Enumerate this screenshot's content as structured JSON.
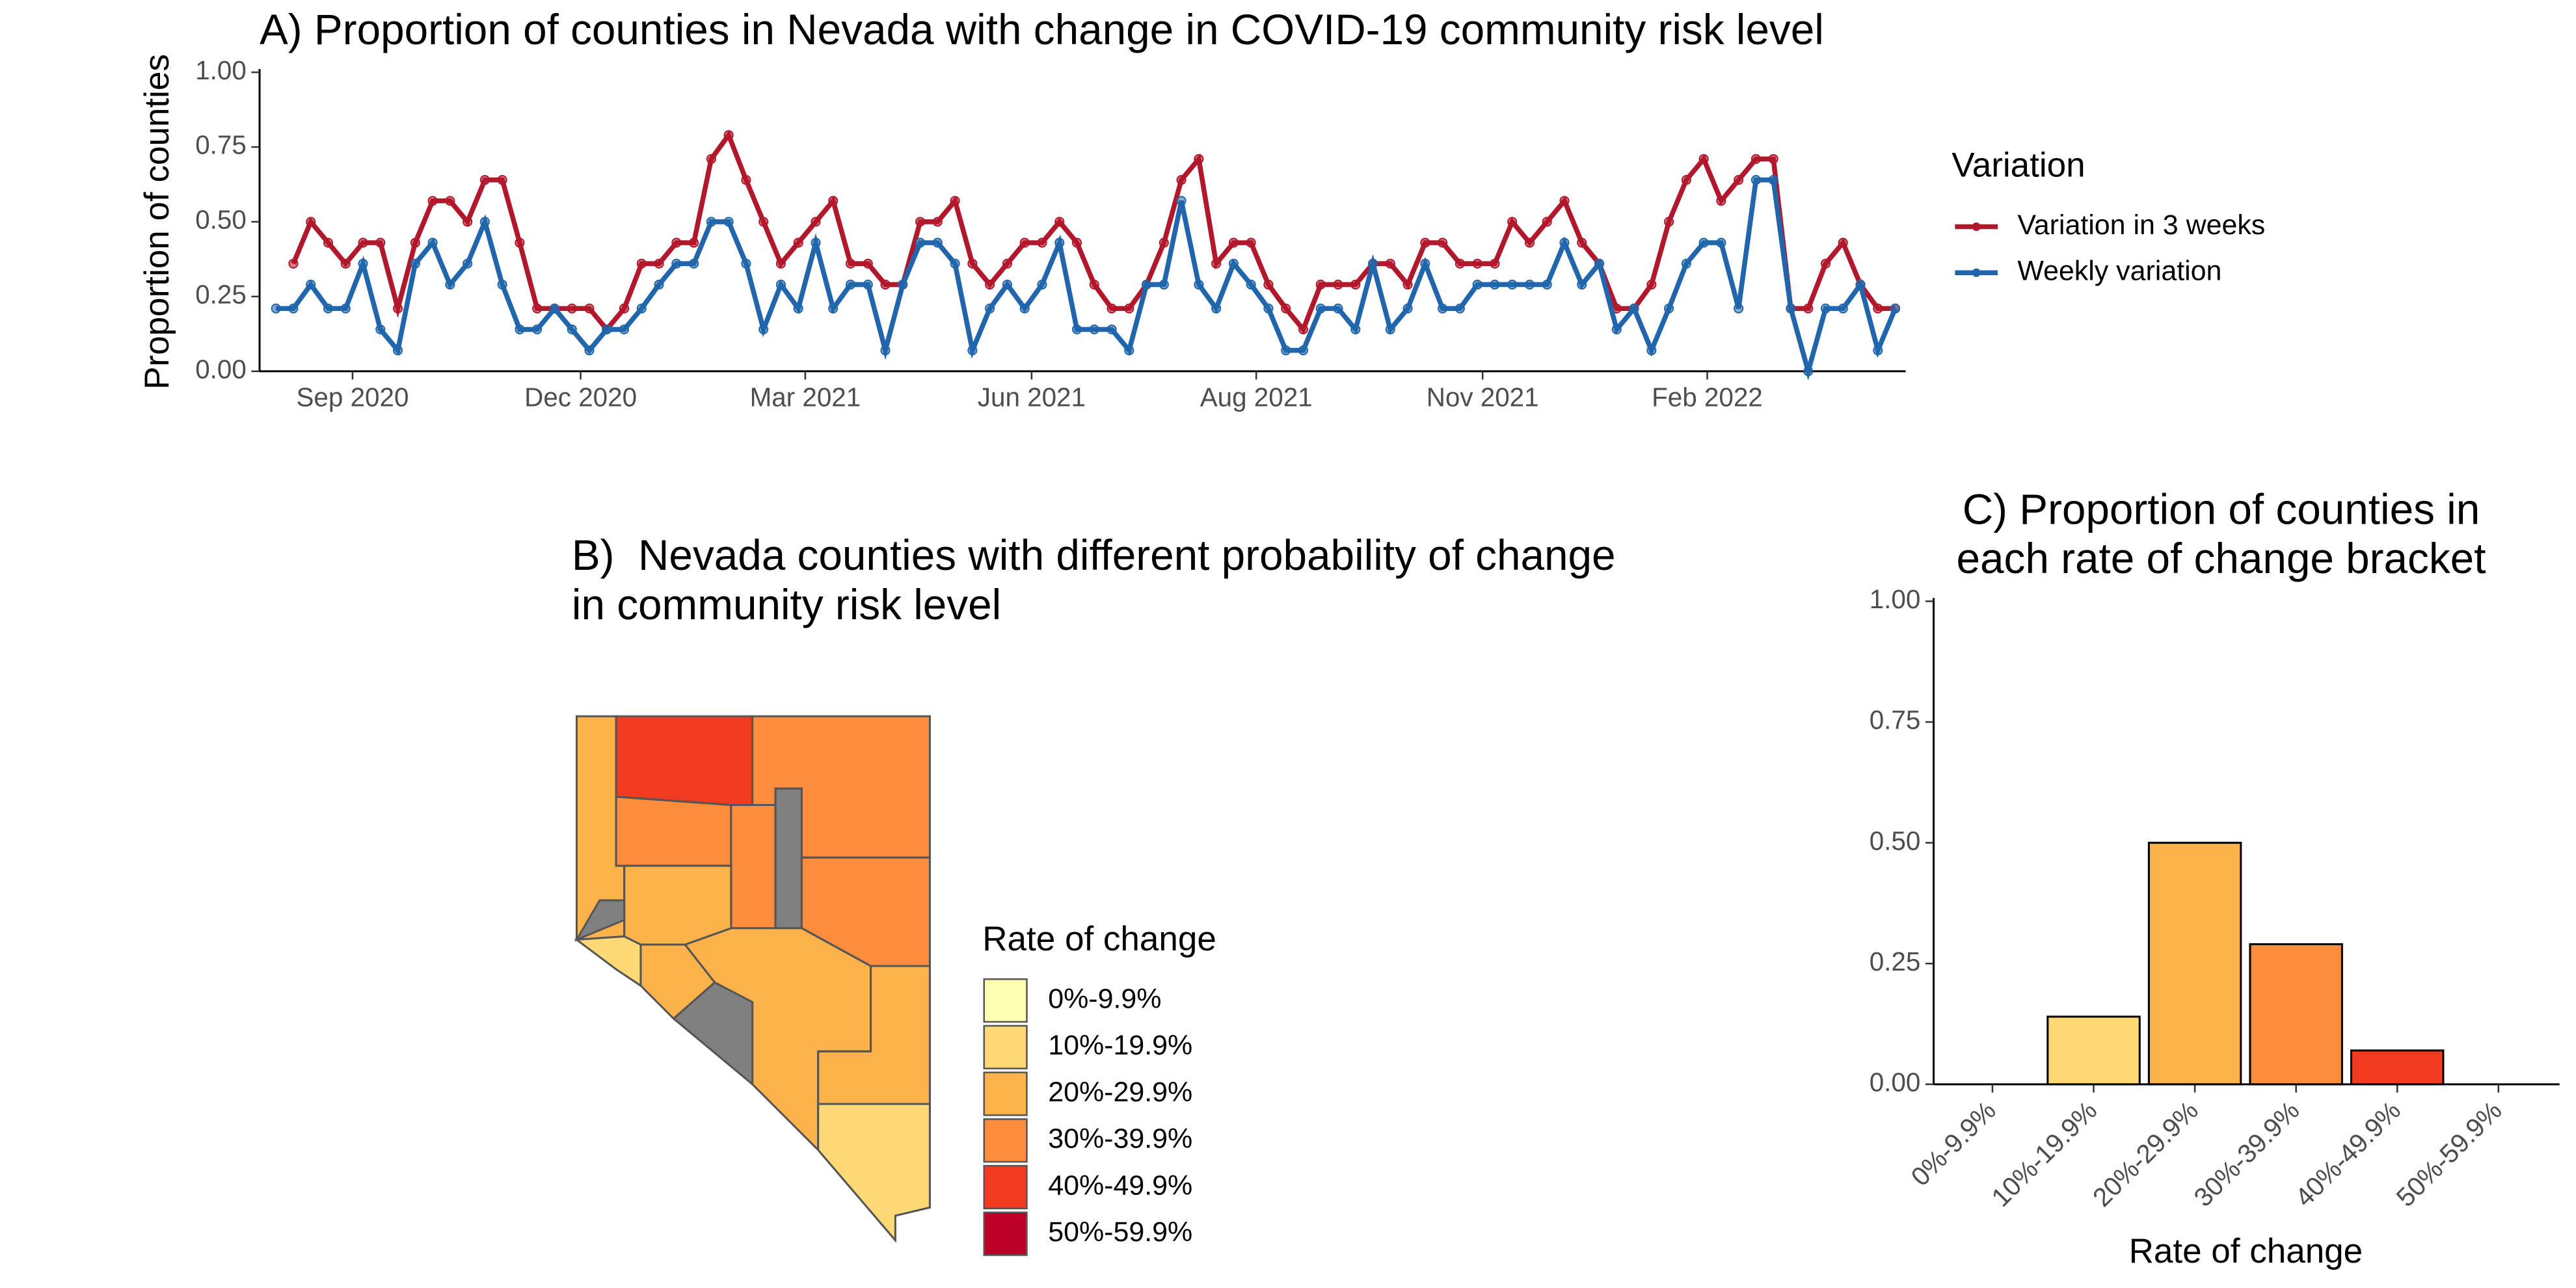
{
  "chart_data": [
    {
      "type": "line",
      "title": "A) Proportion of counties in Nevada with change in COVID-19 community risk level",
      "y_label": "Proportion of counties",
      "legend_title": "Variation",
      "x": [
        0,
        1,
        2,
        3,
        4,
        5,
        6,
        7,
        8,
        9,
        10,
        11,
        12,
        13,
        14,
        15,
        16,
        17,
        18,
        19,
        20,
        21,
        22,
        23,
        24,
        25,
        26,
        27,
        28,
        29,
        30,
        31,
        32,
        33,
        34,
        35,
        36,
        37,
        38,
        39,
        40,
        41,
        42,
        43,
        44,
        45,
        46,
        47,
        48,
        49,
        50,
        51,
        52,
        53,
        54,
        55,
        56,
        57,
        58,
        59,
        60,
        61,
        62,
        63,
        64,
        65,
        66,
        67,
        68,
        69,
        70,
        71,
        72,
        73,
        74,
        75,
        76,
        77,
        78,
        79,
        80,
        81,
        82,
        83,
        84,
        85,
        86,
        87,
        88,
        89,
        90,
        91,
        92,
        93
      ],
      "xlim": [
        -0.94,
        93.6
      ],
      "xticks": [
        {
          "value": 4.4,
          "label": "Sep 2020"
        },
        {
          "value": 17.5,
          "label": "Dec 2020"
        },
        {
          "value": 30.4,
          "label": "Mar 2021"
        },
        {
          "value": 43.4,
          "label": "Jun 2021"
        },
        {
          "value": 56.3,
          "label": "Aug 2021"
        },
        {
          "value": 69.3,
          "label": "Nov 2021"
        },
        {
          "value": 82.2,
          "label": "Feb 2022"
        }
      ],
      "ylim": [
        0,
        1
      ],
      "yticks": [
        {
          "value": 0,
          "label": "0.00"
        },
        {
          "value": 0.25,
          "label": "0.25"
        },
        {
          "value": 0.5,
          "label": "0.50"
        },
        {
          "value": 0.75,
          "label": "0.75"
        },
        {
          "value": 1,
          "label": "1.00"
        }
      ],
      "series": [
        {
          "name": "Variation in 3 weeks",
          "color": "#b2182b",
          "values": [
            null,
            0.36,
            0.5,
            0.43,
            0.36,
            0.43,
            0.43,
            0.21,
            0.43,
            0.57,
            0.57,
            0.5,
            0.64,
            0.64,
            0.43,
            0.21,
            0.21,
            0.21,
            0.21,
            0.14,
            0.21,
            0.36,
            0.36,
            0.43,
            0.43,
            0.71,
            0.79,
            0.64,
            0.5,
            0.36,
            0.43,
            0.5,
            0.57,
            0.36,
            0.36,
            0.29,
            0.29,
            0.5,
            0.5,
            0.57,
            0.36,
            0.29,
            0.36,
            0.43,
            0.43,
            0.5,
            0.43,
            0.29,
            0.21,
            0.21,
            0.29,
            0.43,
            0.64,
            0.71,
            0.36,
            0.43,
            0.43,
            0.29,
            0.21,
            0.14,
            0.29,
            0.29,
            0.29,
            0.36,
            0.36,
            0.29,
            0.43,
            0.43,
            0.36,
            0.36,
            0.36,
            0.5,
            0.43,
            0.5,
            0.57,
            0.43,
            0.36,
            0.21,
            0.21,
            0.29,
            0.5,
            0.64,
            0.71,
            0.57,
            0.64,
            0.71,
            0.71,
            0.21,
            0.21,
            0.36,
            0.43,
            0.29,
            0.21,
            0.21
          ]
        },
        {
          "name": "Weekly variation",
          "color": "#2166ac",
          "values": [
            0.21,
            0.21,
            0.29,
            0.21,
            0.21,
            0.36,
            0.14,
            0.07,
            0.36,
            0.43,
            0.29,
            0.36,
            0.5,
            0.29,
            0.14,
            0.14,
            0.21,
            0.14,
            0.07,
            0.14,
            0.14,
            0.21,
            0.29,
            0.36,
            0.36,
            0.5,
            0.5,
            0.36,
            0.14,
            0.29,
            0.21,
            0.43,
            0.21,
            0.29,
            0.29,
            0.07,
            0.29,
            0.43,
            0.43,
            0.36,
            0.07,
            0.21,
            0.29,
            0.21,
            0.29,
            0.43,
            0.14,
            0.14,
            0.14,
            0.07,
            0.29,
            0.29,
            0.57,
            0.29,
            0.21,
            0.36,
            0.29,
            0.21,
            0.07,
            0.07,
            0.21,
            0.21,
            0.14,
            0.36,
            0.14,
            0.21,
            0.36,
            0.21,
            0.21,
            0.29,
            0.29,
            0.29,
            0.29,
            0.29,
            0.43,
            0.29,
            0.36,
            0.14,
            0.21,
            0.07,
            0.21,
            0.36,
            0.43,
            0.43,
            0.21,
            0.64,
            0.64,
            0.21,
            0,
            0.21,
            0.21,
            0.29,
            0.07,
            0.21
          ]
        }
      ]
    },
    {
      "type": "map",
      "title": [
        "B)  Nevada counties with different probability of change",
        "in community risk level"
      ],
      "legend_title": "Rate of change",
      "legend": [
        {
          "label": "0%-9.9%",
          "color": "#ffffb2"
        },
        {
          "label": "10%-19.9%",
          "color": "#fed976"
        },
        {
          "label": "20%-29.9%",
          "color": "#feb24c"
        },
        {
          "label": "30%-39.9%",
          "color": "#fd8d3c"
        },
        {
          "label": "40%-49.9%",
          "color": "#f03b20"
        },
        {
          "label": "50%-59.9%",
          "color": "#bd0026"
        }
      ]
    },
    {
      "type": "bar",
      "title": [
        "C) Proportion of counties in",
        "each rate of change bracket"
      ],
      "x_label": "Rate of change",
      "categories": [
        "0%-9.9%",
        "10%-19.9%",
        "20%-29.9%",
        "30%-39.9%",
        "40%-49.9%",
        "50%-59.9%"
      ],
      "values": [
        0,
        0.14,
        0.5,
        0.29,
        0.07,
        0
      ],
      "colors": [
        "#ffffb2",
        "#fed976",
        "#feb24c",
        "#fd8d3c",
        "#f03b20",
        "#bd0026"
      ],
      "ylim": [
        0,
        1
      ],
      "yticks": [
        {
          "value": 0,
          "label": "0.00"
        },
        {
          "value": 0.25,
          "label": "0.25"
        },
        {
          "value": 0.5,
          "label": "0.50"
        },
        {
          "value": 0.75,
          "label": "0.75"
        },
        {
          "value": 1,
          "label": "1.00"
        }
      ]
    }
  ]
}
